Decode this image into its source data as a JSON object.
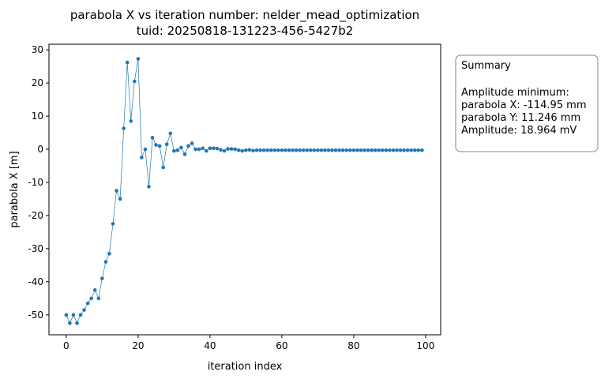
{
  "chart_data": {
    "type": "line",
    "title": "parabola X vs iteration number: nelder_mead_optimization",
    "subtitle": "tuid: 20250818-131223-456-5427b2",
    "x_label": "iteration index",
    "y_label": "parabola X [m]",
    "x": [
      0,
      1,
      2,
      3,
      4,
      5,
      6,
      7,
      8,
      9,
      10,
      11,
      12,
      13,
      14,
      15,
      16,
      17,
      18,
      19,
      20,
      21,
      22,
      23,
      24,
      25,
      26,
      27,
      28,
      29,
      30,
      31,
      32,
      33,
      34,
      35,
      36,
      37,
      38,
      39,
      40,
      41,
      42,
      43,
      44,
      45,
      46,
      47,
      48,
      49,
      50,
      51,
      52,
      53,
      54,
      55,
      56,
      57,
      58,
      59,
      60,
      61,
      62,
      63,
      64,
      65,
      66,
      67,
      68,
      69,
      70,
      71,
      72,
      73,
      74,
      75,
      76,
      77,
      78,
      79,
      80,
      81,
      82,
      83,
      84,
      85,
      86,
      87,
      88,
      89,
      90,
      91,
      92,
      93,
      94,
      95,
      96,
      97,
      98,
      99
    ],
    "series": [
      {
        "name": "parabola X",
        "color": "#1f77b4",
        "values": [
          -50,
          -52.5,
          -50,
          -52.5,
          -50,
          -48.5,
          -46.5,
          -45,
          -42.5,
          -45,
          -39,
          -34,
          -31.5,
          -22.5,
          -12.5,
          -15,
          6.3,
          26.2,
          8.5,
          20.5,
          27.3,
          -2.5,
          0,
          -11.3,
          3.5,
          1.3,
          1,
          -5.5,
          1.5,
          4.8,
          -0.5,
          -0.3,
          0.5,
          -1.5,
          1,
          1.8,
          0,
          0,
          0.3,
          -0.5,
          0.3,
          0.3,
          0.2,
          -0.2,
          -0.5,
          0.1,
          0.1,
          0,
          -0.3,
          -0.5,
          -0.3,
          -0.2,
          -0.4,
          -0.3,
          -0.3,
          -0.3,
          -0.3,
          -0.3,
          -0.3,
          -0.3,
          -0.3,
          -0.3,
          -0.3,
          -0.3,
          -0.3,
          -0.3,
          -0.3,
          -0.3,
          -0.3,
          -0.3,
          -0.3,
          -0.3,
          -0.3,
          -0.3,
          -0.3,
          -0.3,
          -0.3,
          -0.3,
          -0.3,
          -0.3,
          -0.3,
          -0.3,
          -0.3,
          -0.3,
          -0.3,
          -0.3,
          -0.3,
          -0.3,
          -0.3,
          -0.3,
          -0.3,
          -0.3,
          -0.3,
          -0.3,
          -0.3,
          -0.3,
          -0.3,
          -0.3,
          -0.3,
          -0.3
        ]
      }
    ],
    "xlim": [
      -4.8,
      104.2
    ],
    "xticks": [
      0,
      20,
      40,
      60,
      80,
      100
    ],
    "ylim": [
      -56,
      31.7
    ],
    "yticks": [
      -50,
      -40,
      -30,
      -20,
      -10,
      0,
      10,
      20,
      30
    ]
  },
  "summary": {
    "title": "Summary",
    "lines": [
      "Amplitude minimum:",
      "parabola X: -114.95 mm",
      "parabola Y: 11.246 mm",
      "Amplitude: 18.964 mV"
    ]
  }
}
